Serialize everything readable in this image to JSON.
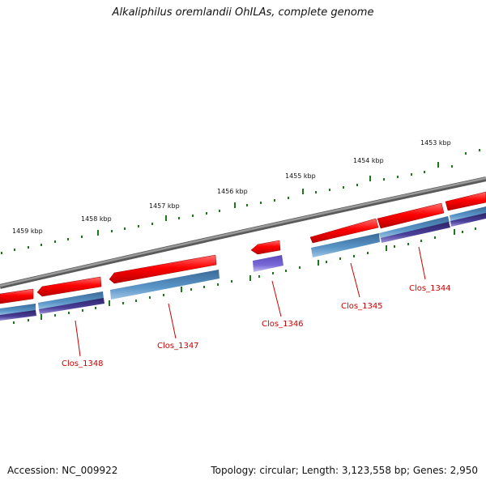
{
  "title": "Alkaliphilus oremlandii OhILAs, complete genome",
  "footer": {
    "accession": "Accession: NC_009922",
    "summary": "Topology: circular; Length: 3,123,558 bp; Genes: 2,950"
  },
  "ruler": {
    "labels": [
      "1453 kbp",
      "1454 kbp",
      "1455 kbp",
      "1456 kbp",
      "1457 kbp",
      "1458 kbp",
      "1459 kbp"
    ]
  },
  "genes": [
    {
      "id": "Clos_1344"
    },
    {
      "id": "Clos_1345"
    },
    {
      "id": "Clos_1346"
    },
    {
      "id": "Clos_1347"
    },
    {
      "id": "Clos_1348"
    }
  ],
  "colors": {
    "cds": "#e00000",
    "gene_steelblue": "#4a84b8",
    "gene_dark": "#443a8a",
    "gene_light": "#7a6ad8",
    "backbone": "#7a7a7a",
    "tick": "#1a7a1a",
    "label": "#cc0000"
  }
}
